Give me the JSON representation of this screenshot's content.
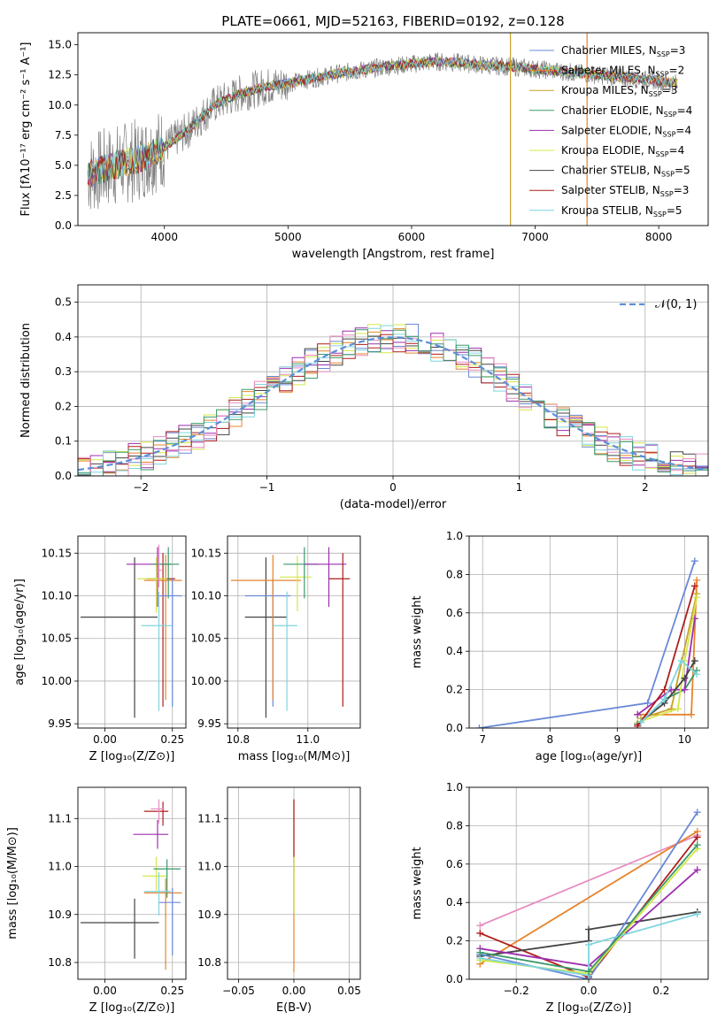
{
  "chart_data": [
    {
      "id": "spectrum",
      "type": "line",
      "title": "PLATE=0661, MJD=52163, FIBERID=0192, z=0.128",
      "xlabel": "wavelength [Angstrom, rest frame]",
      "ylabel": "Flux [fλ10⁻¹⁷ erg cm⁻² s⁻¹ A⁻¹]",
      "xlim": [
        3300,
        8400
      ],
      "ylim": [
        0,
        16
      ],
      "xticks": [
        4000,
        5000,
        6000,
        7000,
        8000
      ],
      "yticks": [
        0.0,
        2.5,
        5.0,
        7.5,
        10.0,
        12.5,
        15.0
      ],
      "grid": false,
      "legend": "upper-right",
      "data_sample": {
        "x": [
          3400,
          3600,
          3800,
          4000,
          4200,
          4400,
          4600,
          4800,
          5000,
          5200,
          5400,
          5600,
          5800,
          6000,
          6200,
          6400,
          6600,
          6800,
          7000,
          7200,
          7400,
          7600,
          7800,
          8000,
          8150
        ],
        "y": [
          4.3,
          5.0,
          5.5,
          6.5,
          8.0,
          10.0,
          10.9,
          11.5,
          11.8,
          12.2,
          12.6,
          12.9,
          13.2,
          13.4,
          13.6,
          13.5,
          13.3,
          13.2,
          13.0,
          12.8,
          12.6,
          12.4,
          12.2,
          12.0,
          11.8
        ]
      },
      "series": [
        {
          "name": "Chabrier MILES, N<sub>SSP</sub>=3",
          "color": "#6a89d8"
        },
        {
          "name": "Salpeter MILES, N<sub>SSP</sub>=2",
          "color": "#e7842b"
        },
        {
          "name": "Kroupa MILES, N<sub>SSP</sub>=3",
          "color": "#c9a227"
        },
        {
          "name": "Chabrier ELODIE, N<sub>SSP</sub>=4",
          "color": "#3a9a6a"
        },
        {
          "name": "Salpeter ELODIE, N<sub>SSP</sub>=4",
          "color": "#9c2fae"
        },
        {
          "name": "Kroupa ELODIE, N<sub>SSP</sub>=4",
          "color": "#d4e84a"
        },
        {
          "name": "Chabrier STELIB, N<sub>SSP</sub>=5",
          "color": "#444444"
        },
        {
          "name": "Salpeter STELIB, N<sub>SSP</sub>=3",
          "color": "#b01c1c"
        },
        {
          "name": "Kroupa STELIB, N<sub>SSP</sub>=5",
          "color": "#7ed5df"
        }
      ],
      "vertical_lines": [
        {
          "x": 6800,
          "color": "#c9a227"
        },
        {
          "x": 7420,
          "color": "#e7842b"
        }
      ]
    },
    {
      "id": "residuals",
      "type": "line",
      "xlabel": "(data-model)/error",
      "ylabel": "Normed distribution",
      "xlim": [
        -2.5,
        2.5
      ],
      "ylim": [
        0,
        0.55
      ],
      "xticks": [
        -2,
        -1,
        0,
        1,
        2
      ],
      "yticks": [
        0.0,
        0.1,
        0.2,
        0.3,
        0.4,
        0.5
      ],
      "grid": true,
      "legend": "upper-right",
      "gauss_label": "𝒩(0, 1)",
      "gauss_color": "#5b8fd9",
      "hist_colors": [
        "#6a89d8",
        "#e7842b",
        "#9c2fae",
        "#d4e84a",
        "#444444",
        "#b01c1c",
        "#7ed5df",
        "#e78bc0",
        "#3a9a6a"
      ]
    },
    {
      "id": "age_vs_Z",
      "type": "scatter",
      "xlabel": "Z [log₁₀(Z/Z⊙)]",
      "ylabel": "age  [log₁₀(age/yr)]",
      "xlim": [
        -0.1,
        0.3
      ],
      "ylim": [
        9.945,
        10.17
      ],
      "xticks": [
        0.0,
        0.25
      ],
      "yticks": [
        9.95,
        10.0,
        10.05,
        10.1,
        10.15
      ],
      "grid": true,
      "points": [
        {
          "x": 0.11,
          "y": 10.075,
          "xerr": [
            0.2,
            0.085
          ],
          "yerr": [
            0.118,
            0.07
          ],
          "color": "#444444"
        },
        {
          "x": 0.195,
          "y": 10.137,
          "xerr": [
            0.115,
            0.05
          ],
          "yerr": [
            0.05,
            0.02
          ],
          "color": "#9c2fae"
        },
        {
          "x": 0.215,
          "y": 10.12,
          "xerr": [
            0.06,
            0.045
          ],
          "yerr": [
            0.15,
            0.03
          ],
          "color": "#b01c1c"
        },
        {
          "x": 0.225,
          "y": 10.118,
          "xerr": [
            0.08,
            0.06
          ],
          "yerr": [
            0.14,
            0.03
          ],
          "color": "#e7842b"
        },
        {
          "x": 0.19,
          "y": 10.12,
          "xerr": [
            0.07,
            0.04
          ],
          "yerr": [
            0.04,
            0.025
          ],
          "color": "#d4e84a"
        },
        {
          "x": 0.235,
          "y": 10.137,
          "xerr": [
            0.06,
            0.04
          ],
          "yerr": [
            0.04,
            0.02
          ],
          "color": "#3a9a6a"
        },
        {
          "x": 0.25,
          "y": 10.1,
          "xerr": [
            0.05,
            0.035
          ],
          "yerr": [
            0.13,
            0.02
          ],
          "color": "#6a89d8"
        },
        {
          "x": 0.2,
          "y": 10.065,
          "xerr": [
            0.065,
            0.05
          ],
          "yerr": [
            0.1,
            0.04
          ],
          "color": "#7ed5df"
        },
        {
          "x": 0.2,
          "y": 10.13,
          "xerr": [
            0.01,
            0.01
          ],
          "yerr": [
            0.02,
            0.03
          ],
          "color": "#e78bc0"
        }
      ]
    },
    {
      "id": "age_vs_mass",
      "type": "scatter",
      "xlabel": "mass [log₁₀(M/M⊙)]",
      "ylabel": "",
      "xlim": [
        10.77,
        11.15
      ],
      "ylim": [
        9.945,
        10.17
      ],
      "xticks": [
        10.8,
        11.0
      ],
      "yticks": [
        9.95,
        10.0,
        10.05,
        10.1,
        10.15
      ],
      "grid": true,
      "points": [
        {
          "x": 10.88,
          "y": 10.075,
          "xerr": [
            0.06,
            0.06
          ],
          "yerr": [
            0.118,
            0.07
          ],
          "color": "#444444"
        },
        {
          "x": 10.9,
          "y": 10.1,
          "xerr": [
            0.08,
            0.05
          ],
          "yerr": [
            0.13,
            0.02
          ],
          "color": "#6a89d8"
        },
        {
          "x": 10.94,
          "y": 10.065,
          "xerr": [
            0.04,
            0.03
          ],
          "yerr": [
            0.1,
            0.04
          ],
          "color": "#7ed5df"
        },
        {
          "x": 10.9,
          "y": 10.118,
          "xerr": [
            0.12,
            0.08
          ],
          "yerr": [
            0.14,
            0.03
          ],
          "color": "#e7842b"
        },
        {
          "x": 10.97,
          "y": 10.122,
          "xerr": [
            0.05,
            0.04
          ],
          "yerr": [
            0.04,
            0.025
          ],
          "color": "#d4e84a"
        },
        {
          "x": 10.99,
          "y": 10.137,
          "xerr": [
            0.06,
            0.04
          ],
          "yerr": [
            0.04,
            0.02
          ],
          "color": "#3a9a6a"
        },
        {
          "x": 11.06,
          "y": 10.137,
          "xerr": [
            0.07,
            0.05
          ],
          "yerr": [
            0.05,
            0.02
          ],
          "color": "#9c2fae"
        },
        {
          "x": 11.1,
          "y": 10.12,
          "xerr": [
            0.04,
            0.02
          ],
          "yerr": [
            0.15,
            0.03
          ],
          "color": "#b01c1c"
        }
      ]
    },
    {
      "id": "massweight_vs_age",
      "type": "line",
      "xlabel": "age  [log₁₀(age/yr)]",
      "ylabel": "mass weight",
      "xlim": [
        6.8,
        10.35
      ],
      "ylim": [
        0,
        1
      ],
      "xticks": [
        7,
        8,
        9,
        10
      ],
      "yticks": [
        0.0,
        0.2,
        0.4,
        0.6,
        0.8,
        1.0
      ],
      "grid": true,
      "series": [
        {
          "color": "#6a89d8",
          "x": [
            6.95,
            9.45,
            10.15
          ],
          "y": [
            0.0,
            0.13,
            0.87
          ]
        },
        {
          "color": "#e7842b",
          "x": [
            9.3,
            10.1,
            10.18
          ],
          "y": [
            0.07,
            0.07,
            0.77
          ]
        },
        {
          "color": "#c9a227",
          "x": [
            9.35,
            9.8,
            10.18
          ],
          "y": [
            0.05,
            0.1,
            0.7
          ]
        },
        {
          "color": "#3a9a6a",
          "x": [
            9.35,
            9.7,
            10.0,
            10.18
          ],
          "y": [
            0.03,
            0.15,
            0.2,
            0.3
          ]
        },
        {
          "color": "#9c2fae",
          "x": [
            9.3,
            9.8,
            10.0,
            10.15
          ],
          "y": [
            0.07,
            0.2,
            0.2,
            0.57
          ]
        },
        {
          "color": "#d4e84a",
          "x": [
            9.3,
            9.9,
            10.0,
            10.18
          ],
          "y": [
            0.03,
            0.1,
            0.35,
            0.68
          ]
        },
        {
          "color": "#444444",
          "x": [
            9.3,
            9.7,
            10.0,
            10.15
          ],
          "y": [
            0.02,
            0.13,
            0.26,
            0.35
          ]
        },
        {
          "color": "#b01c1c",
          "x": [
            9.3,
            9.7,
            10.15
          ],
          "y": [
            0.01,
            0.2,
            0.74
          ]
        },
        {
          "color": "#7ed5df",
          "x": [
            9.35,
            9.7,
            9.95,
            10.18
          ],
          "y": [
            0.03,
            0.15,
            0.35,
            0.28
          ]
        }
      ]
    },
    {
      "id": "mass_vs_Z",
      "type": "scatter",
      "xlabel": "Z [log₁₀(Z/Z⊙)]",
      "ylabel": "mass [log₁₀(M/M⊙)]",
      "xlim": [
        -0.1,
        0.3
      ],
      "ylim": [
        10.765,
        11.165
      ],
      "xticks": [
        0.0,
        0.25
      ],
      "yticks": [
        10.8,
        10.9,
        11.0,
        11.1
      ],
      "grid": true,
      "points": [
        {
          "x": 0.11,
          "y": 10.883,
          "xerr": [
            0.2,
            0.09
          ],
          "yerr": [
            0.075,
            0.05
          ],
          "color": "#444444"
        },
        {
          "x": 0.195,
          "y": 11.067,
          "xerr": [
            0.09,
            0.04
          ],
          "yerr": [
            0.03,
            0.03
          ],
          "color": "#9c2fae"
        },
        {
          "x": 0.215,
          "y": 11.115,
          "xerr": [
            0.07,
            0.02
          ],
          "yerr": [
            0.03,
            0.02
          ],
          "color": "#b01c1c"
        },
        {
          "x": 0.225,
          "y": 10.945,
          "xerr": [
            0.08,
            0.06
          ],
          "yerr": [
            0.16,
            0.03
          ],
          "color": "#e7842b"
        },
        {
          "x": 0.19,
          "y": 10.98,
          "xerr": [
            0.05,
            0.04
          ],
          "yerr": [
            0.03,
            0.04
          ],
          "color": "#d4e84a"
        },
        {
          "x": 0.23,
          "y": 10.995,
          "xerr": [
            0.05,
            0.05
          ],
          "yerr": [
            0.06,
            0.02
          ],
          "color": "#3a9a6a"
        },
        {
          "x": 0.25,
          "y": 10.925,
          "xerr": [
            0.05,
            0.03
          ],
          "yerr": [
            0.11,
            0.03
          ],
          "color": "#6a89d8"
        },
        {
          "x": 0.2,
          "y": 10.948,
          "xerr": [
            0.055,
            0.045
          ],
          "yerr": [
            0.05,
            0.04
          ],
          "color": "#7ed5df"
        },
        {
          "x": 0.2,
          "y": 11.12,
          "xerr": [
            0.03,
            0.02
          ],
          "yerr": [
            0.03,
            0.02
          ],
          "color": "#e78bc0"
        }
      ]
    },
    {
      "id": "mass_vs_EBV",
      "type": "scatter",
      "xlabel": "E(B-V)",
      "ylabel": "",
      "xlim": [
        -0.06,
        0.06
      ],
      "ylim": [
        10.765,
        11.165
      ],
      "xticks": [
        -0.05,
        0.0,
        0.05
      ],
      "yticks": [
        10.8,
        10.9,
        11.0,
        11.1
      ],
      "grid": true,
      "points": [
        {
          "x": 0.0,
          "y": 10.96,
          "xerr": [
            0,
            0
          ],
          "yerr": [
            0.18,
            0.18
          ],
          "color": "#e7842b"
        },
        {
          "x": 0.0,
          "y": 11.0,
          "xerr": [
            0,
            0
          ],
          "yerr": [
            0.1,
            0.14
          ],
          "color": "#b01c1c"
        },
        {
          "x": 0.0,
          "y": 10.95,
          "xerr": [
            0,
            0
          ],
          "yerr": [
            0.05,
            0.07
          ],
          "color": "#d4e84a"
        }
      ]
    },
    {
      "id": "massweight_vs_Z",
      "type": "line",
      "xlabel": "Z [log₁₀(Z/Z⊙)]",
      "ylabel": "mass weight",
      "xlim": [
        -0.33,
        0.33
      ],
      "ylim": [
        0,
        1
      ],
      "xticks": [
        -0.2,
        0.0,
        0.2
      ],
      "yticks": [
        0.0,
        0.2,
        0.4,
        0.6,
        0.8,
        1.0
      ],
      "grid": true,
      "series": [
        {
          "color": "#e78bc0",
          "x": [
            -0.3,
            0.3
          ],
          "y": [
            0.28,
            0.75
          ]
        },
        {
          "color": "#e7842b",
          "x": [
            -0.3,
            0.3
          ],
          "y": [
            0.08,
            0.77
          ]
        },
        {
          "color": "#b01c1c",
          "x": [
            -0.3,
            0.0,
            0.3
          ],
          "y": [
            0.24,
            0.01,
            0.74
          ]
        },
        {
          "color": "#444444",
          "x": [
            -0.3,
            0.0,
            0.0,
            0.3
          ],
          "y": [
            0.12,
            0.2,
            0.26,
            0.35
          ]
        },
        {
          "color": "#9c2fae",
          "x": [
            -0.3,
            0.0,
            0.3
          ],
          "y": [
            0.16,
            0.07,
            0.57
          ]
        },
        {
          "color": "#6a89d8",
          "x": [
            -0.3,
            0.0,
            0.3
          ],
          "y": [
            0.13,
            0.0,
            0.87
          ]
        },
        {
          "color": "#d4e84a",
          "x": [
            -0.3,
            0.0,
            0.3
          ],
          "y": [
            0.1,
            0.03,
            0.68
          ]
        },
        {
          "color": "#7ed5df",
          "x": [
            -0.3,
            0.0,
            0.0,
            0.3
          ],
          "y": [
            0.11,
            0.02,
            0.18,
            0.34
          ]
        },
        {
          "color": "#3a9a6a",
          "x": [
            -0.3,
            0.0,
            0.3
          ],
          "y": [
            0.14,
            0.04,
            0.7
          ]
        }
      ]
    }
  ]
}
